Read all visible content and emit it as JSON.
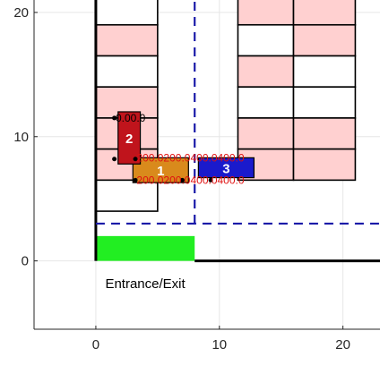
{
  "chart_data": {
    "type": "scatter",
    "title": "",
    "xlabel": "",
    "ylabel": "",
    "xlim": [
      -5,
      23
    ],
    "ylim": [
      -5.5,
      21
    ],
    "xticks": [
      0,
      10,
      20
    ],
    "yticks": [
      0,
      10,
      20
    ],
    "grid": true,
    "left_spots": [
      {
        "y0": 19,
        "y1": 21.5,
        "occupied": false
      },
      {
        "y0": 16.5,
        "y1": 19,
        "occupied": true
      },
      {
        "y0": 14,
        "y1": 16.5,
        "occupied": false
      },
      {
        "y0": 11.5,
        "y1": 14,
        "occupied": true
      },
      {
        "y0": 9,
        "y1": 11.5,
        "occupied": true
      },
      {
        "y0": 6.5,
        "y1": 9,
        "occupied": true
      },
      {
        "y0": 4,
        "y1": 6.5,
        "occupied": false
      }
    ],
    "left_block": {
      "x0": 0,
      "x1": 5
    },
    "right_spots": [
      {
        "x0": 11.5,
        "x1": 16,
        "y0": 19,
        "y1": 21.5,
        "occupied": true
      },
      {
        "x0": 16,
        "x1": 21,
        "y0": 19,
        "y1": 21.5,
        "occupied": true
      },
      {
        "x0": 11.5,
        "x1": 16,
        "y0": 16.5,
        "y1": 19,
        "occupied": false
      },
      {
        "x0": 16,
        "x1": 21,
        "y0": 16.5,
        "y1": 19,
        "occupied": true
      },
      {
        "x0": 11.5,
        "x1": 16,
        "y0": 14,
        "y1": 16.5,
        "occupied": true
      },
      {
        "x0": 16,
        "x1": 21,
        "y0": 14,
        "y1": 16.5,
        "occupied": false
      },
      {
        "x0": 11.5,
        "x1": 16,
        "y0": 11.5,
        "y1": 14,
        "occupied": false
      },
      {
        "x0": 16,
        "x1": 21,
        "y0": 11.5,
        "y1": 14,
        "occupied": false
      },
      {
        "x0": 11.5,
        "x1": 16,
        "y0": 9,
        "y1": 11.5,
        "occupied": true
      },
      {
        "x0": 16,
        "x1": 21,
        "y0": 9,
        "y1": 11.5,
        "occupied": true
      },
      {
        "x0": 11.5,
        "x1": 16,
        "y0": 6.5,
        "y1": 9,
        "occupied": true
      },
      {
        "x0": 16,
        "x1": 21,
        "y0": 6.5,
        "y1": 9,
        "occupied": true
      }
    ],
    "walls": [
      {
        "x": [
          0,
          0
        ],
        "y": [
          0,
          21.5
        ]
      },
      {
        "x": [
          8,
          23
        ],
        "y": [
          0,
          0
        ]
      }
    ],
    "entrance": {
      "x0": 0,
      "x1": 8,
      "y0": 0,
      "y1": 2,
      "label": "Entrance/Exit",
      "label_x": 4,
      "label_y": -2.2
    },
    "dashed_lines": [
      {
        "x": [
          8,
          8
        ],
        "y": [
          3,
          21.5
        ]
      },
      {
        "x": [
          0,
          23
        ],
        "y": [
          3,
          3
        ]
      }
    ],
    "vehicles": [
      {
        "id": "1",
        "x0": 3,
        "x1": 7.5,
        "y0": 6.3,
        "y1": 8.3,
        "color": "#d98a1c"
      },
      {
        "id": "2",
        "x0": 1.8,
        "x1": 3.6,
        "y0": 7.8,
        "y1": 12,
        "color": "#c0141c"
      },
      {
        "id": "3",
        "x0": 8.3,
        "x1": 12.8,
        "y0": 6.7,
        "y1": 8.3,
        "color": "#1a1acc"
      }
    ],
    "markers": [
      {
        "x": 1.5,
        "y": 11.5
      },
      {
        "x": 1.5,
        "y": 8.2
      },
      {
        "x": 3.2,
        "y": 8.2
      },
      {
        "x": 3.2,
        "y": 6.5
      },
      {
        "x": 7.0,
        "y": 6.5
      },
      {
        "x": 9.3,
        "y": 6.5
      }
    ],
    "annotations": [
      {
        "x": 1.6,
        "y": 11.5,
        "text": "0.00.0",
        "color": "#000000"
      },
      {
        "x": 3.3,
        "y": 8.3,
        "text": "200.0200.0400.0400.0",
        "color": "#e01010"
      },
      {
        "x": 3.3,
        "y": 6.5,
        "text": "200.0200.0400.0400.0",
        "color": "#e01010"
      }
    ],
    "colors": {
      "occupied": "#ffd0d0",
      "free": "#ffffff",
      "entrance": "#22ee22",
      "dashed": "#1a1aa8",
      "grid": "#e6e6e6"
    }
  }
}
